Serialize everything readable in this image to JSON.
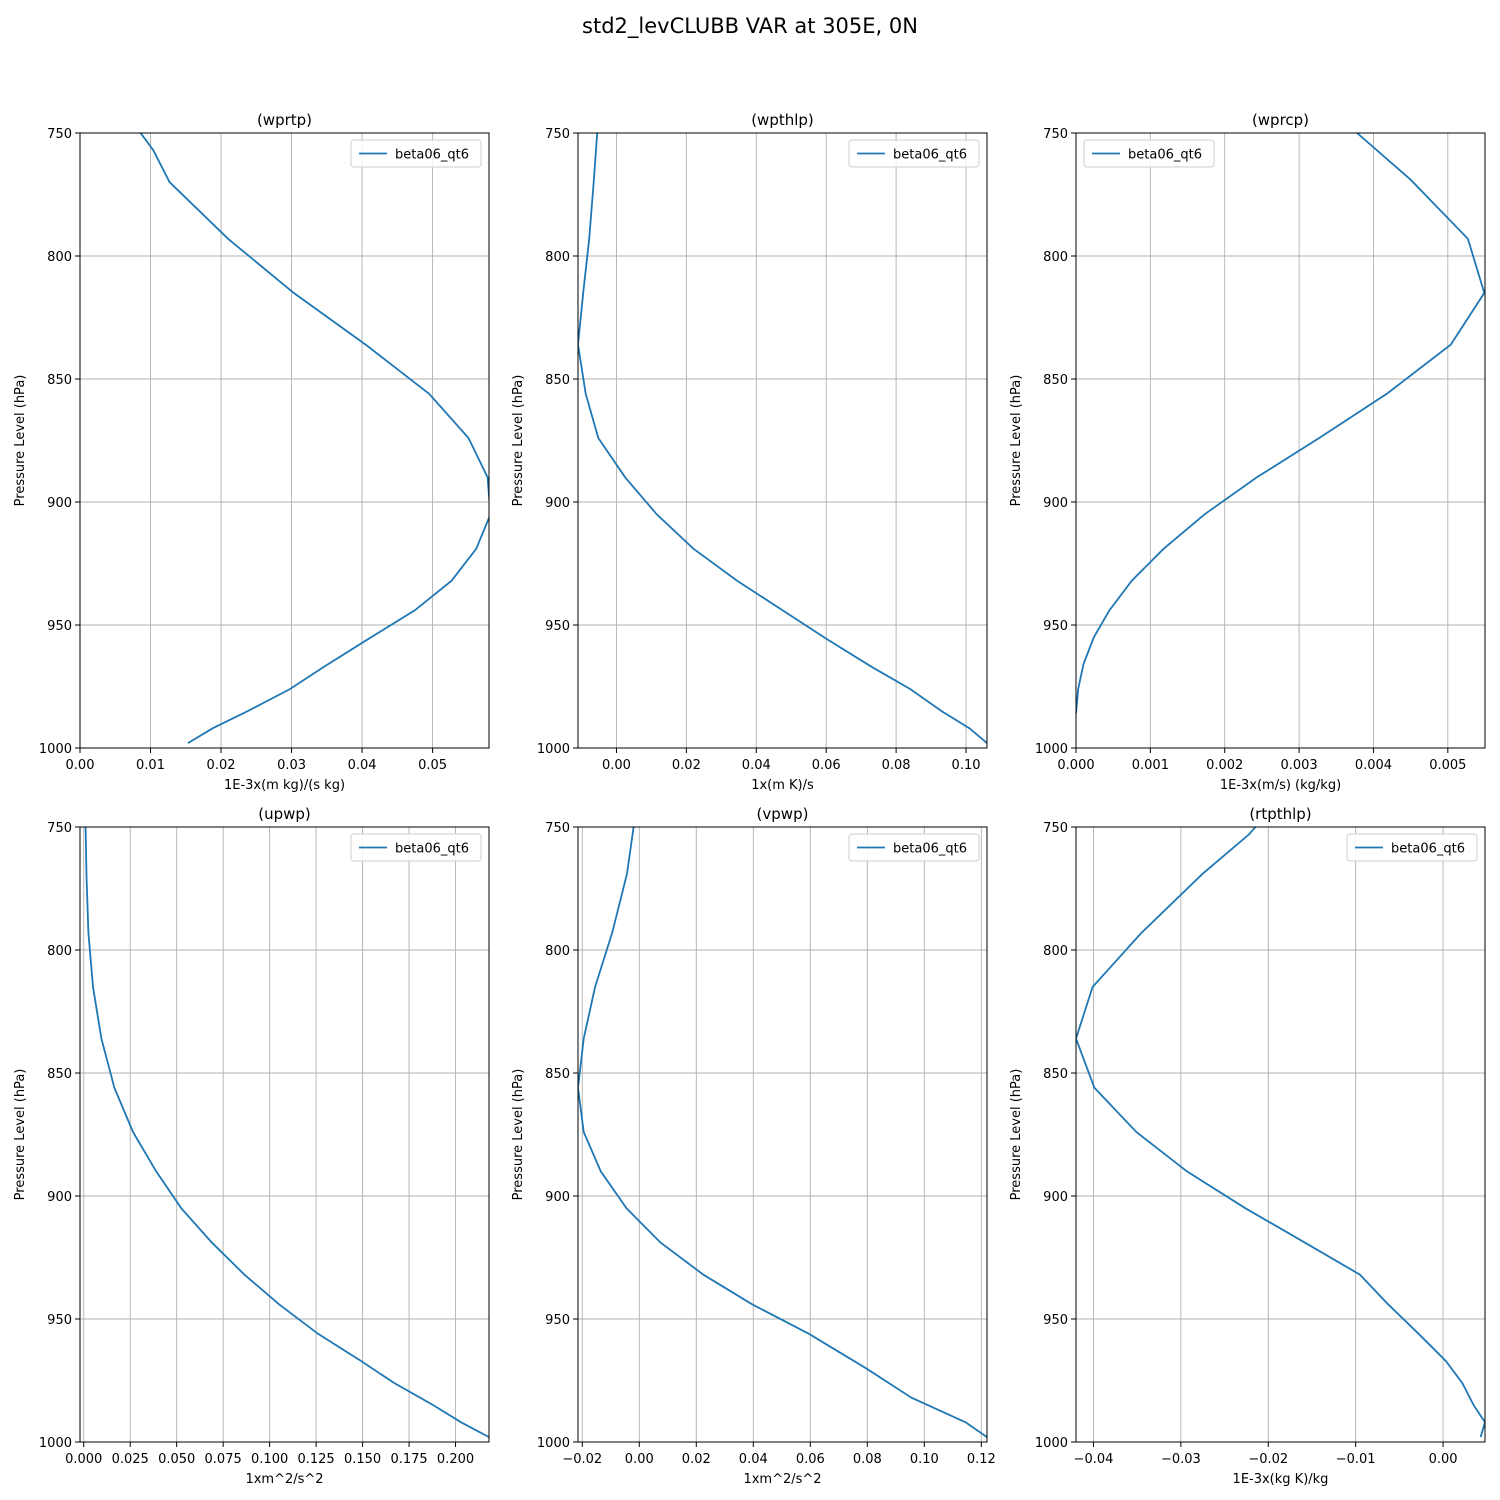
{
  "figure": {
    "title": "std2_levCLUBB VAR at 305E, 0N"
  },
  "colors": {
    "series": "#1f77b4",
    "grid": "#b0b0b0",
    "axis": "#000000",
    "legend_border": "#cccccc"
  },
  "chart_data": [
    {
      "type": "line",
      "title": "(wprtp)",
      "xlabel": "1E-3x(m kg)/(s kg)",
      "ylabel": "Pressure Level (hPa)",
      "xlim": [
        0,
        0.058
      ],
      "ylim": [
        1000,
        750
      ],
      "xticks": [
        0,
        0.01,
        0.02,
        0.03,
        0.04,
        0.05
      ],
      "xtick_labels": [
        "0.00",
        "0.01",
        "0.02",
        "0.03",
        "0.04",
        "0.05"
      ],
      "yticks": [
        750,
        800,
        850,
        900,
        950,
        1000
      ],
      "ytick_labels": [
        "750",
        "800",
        "850",
        "900",
        "950",
        "1000"
      ],
      "grid": true,
      "legend": "upper right",
      "series": [
        {
          "name": "beta06_qt6",
          "x": [
            0.0086,
            0.0104,
            0.0127,
            0.021,
            0.0303,
            0.0405,
            0.0495,
            0.0551,
            0.0578,
            0.0582,
            0.0562,
            0.0527,
            0.0475,
            0.0407,
            0.0346,
            0.0298,
            0.0238,
            0.0188,
            0.0153
          ],
          "y": [
            750,
            757,
            770,
            793,
            815,
            836,
            856,
            874,
            890,
            905,
            919,
            932,
            944,
            956,
            967,
            976,
            985,
            992,
            998
          ]
        }
      ]
    },
    {
      "type": "line",
      "title": "(wpthlp)",
      "xlabel": "1x(m K)/s",
      "ylabel": "Pressure Level (hPa)",
      "xlim": [
        -0.011,
        0.106
      ],
      "ylim": [
        1000,
        750
      ],
      "xticks": [
        0,
        0.02,
        0.04,
        0.06,
        0.08,
        0.1
      ],
      "xtick_labels": [
        "0.00",
        "0.02",
        "0.04",
        "0.06",
        "0.08",
        "0.10"
      ],
      "yticks": [
        750,
        800,
        850,
        900,
        950,
        1000
      ],
      "ytick_labels": [
        "750",
        "800",
        "850",
        "900",
        "950",
        "1000"
      ],
      "grid": true,
      "legend": "upper right",
      "series": [
        {
          "name": "beta06_qt6",
          "x": [
            -0.0055,
            -0.0065,
            -0.0078,
            -0.0095,
            -0.011,
            -0.0088,
            -0.0052,
            0.0025,
            0.0115,
            0.022,
            0.0345,
            0.0475,
            0.0605,
            0.073,
            0.084,
            0.093,
            0.101,
            0.106
          ],
          "y": [
            750,
            770,
            793,
            815,
            836,
            856,
            874,
            890,
            905,
            919,
            932,
            944,
            956,
            967,
            976,
            985,
            992,
            998
          ]
        }
      ]
    },
    {
      "type": "line",
      "title": "(wprcp)",
      "xlabel": "1E-3x(m/s) (kg/kg)",
      "ylabel": "Pressure Level (hPa)",
      "xlim": [
        0,
        0.0055
      ],
      "ylim": [
        1000,
        750
      ],
      "xticks": [
        0,
        0.001,
        0.002,
        0.003,
        0.004,
        0.005
      ],
      "xtick_labels": [
        "0.000",
        "0.001",
        "0.002",
        "0.003",
        "0.004",
        "0.005"
      ],
      "yticks": [
        750,
        800,
        850,
        900,
        950,
        1000
      ],
      "ytick_labels": [
        "750",
        "800",
        "850",
        "900",
        "950",
        "1000"
      ],
      "grid": true,
      "legend": "upper left",
      "series": [
        {
          "name": "beta06_qt6",
          "x": [
            0.00378,
            0.0045,
            0.00527,
            0.00549,
            0.00504,
            0.00418,
            0.00327,
            0.00243,
            0.00173,
            0.00118,
            0.00075,
            0.00045,
            0.00024,
            0.0001,
            3e-05,
            0.0
          ],
          "y": [
            750,
            769,
            793,
            815,
            836,
            856,
            874,
            890,
            905,
            919,
            932,
            944,
            955,
            966,
            976,
            986
          ]
        }
      ]
    },
    {
      "type": "line",
      "title": "(upwp)",
      "xlabel": "1xm^2/s^2",
      "ylabel": "Pressure Level (hPa)",
      "xlim": [
        -0.002,
        0.218
      ],
      "ylim": [
        1000,
        750
      ],
      "xticks": [
        0,
        0.025,
        0.05,
        0.075,
        0.1,
        0.125,
        0.15,
        0.175,
        0.2
      ],
      "xtick_labels": [
        "0.000",
        "0.025",
        "0.050",
        "0.075",
        "0.100",
        "0.125",
        "0.150",
        "0.175",
        "0.200"
      ],
      "yticks": [
        750,
        800,
        850,
        900,
        950,
        1000
      ],
      "ytick_labels": [
        "750",
        "800",
        "850",
        "900",
        "950",
        "1000"
      ],
      "grid": true,
      "legend": "upper right",
      "series": [
        {
          "name": "beta06_qt6",
          "x": [
            0.001,
            0.0015,
            0.0025,
            0.005,
            0.0095,
            0.0165,
            0.0265,
            0.039,
            0.0525,
            0.069,
            0.0865,
            0.105,
            0.126,
            0.149,
            0.167,
            0.188,
            0.203,
            0.218
          ],
          "y": [
            750,
            770,
            793,
            815,
            836,
            856,
            874,
            890,
            905,
            919,
            932,
            944,
            956,
            967,
            976,
            985,
            992,
            998
          ]
        }
      ]
    },
    {
      "type": "line",
      "title": "(vpwp)",
      "xlabel": "1xm^2/s^2",
      "ylabel": "Pressure Level (hPa)",
      "xlim": [
        -0.0215,
        0.122
      ],
      "ylim": [
        1000,
        750
      ],
      "xticks": [
        -0.02,
        0,
        0.02,
        0.04,
        0.06,
        0.08,
        0.1,
        0.12
      ],
      "xtick_labels": [
        "−0.02",
        "0.00",
        "0.02",
        "0.04",
        "0.06",
        "0.08",
        "0.10",
        "0.12"
      ],
      "yticks": [
        750,
        800,
        850,
        900,
        950,
        1000
      ],
      "ytick_labels": [
        "750",
        "800",
        "850",
        "900",
        "950",
        "1000"
      ],
      "grid": true,
      "legend": "upper right",
      "series": [
        {
          "name": "beta06_qt6",
          "x": [
            -0.002,
            -0.0043,
            -0.0095,
            -0.0155,
            -0.0195,
            -0.0215,
            -0.0195,
            -0.0135,
            -0.0045,
            0.0075,
            0.0225,
            0.0395,
            0.0595,
            0.0795,
            0.0955,
            0.1145,
            0.122
          ],
          "y": [
            750,
            769,
            793,
            815,
            836,
            856,
            874,
            890,
            905,
            919,
            932,
            944,
            956,
            970,
            982,
            992,
            998
          ]
        }
      ]
    },
    {
      "type": "line",
      "title": "(rtpthlp)",
      "xlabel": "1E-3x(kg K)/kg",
      "ylabel": "Pressure Level (hPa)",
      "xlim": [
        -0.042,
        0.0048
      ],
      "ylim": [
        1000,
        750
      ],
      "xticks": [
        -0.04,
        -0.03,
        -0.02,
        -0.01,
        0
      ],
      "xtick_labels": [
        "−0.04",
        "−0.03",
        "−0.02",
        "−0.01",
        "0.00"
      ],
      "yticks": [
        750,
        800,
        850,
        900,
        950,
        1000
      ],
      "ytick_labels": [
        "750",
        "800",
        "850",
        "900",
        "950",
        "1000"
      ],
      "grid": true,
      "legend": "upper right",
      "series": [
        {
          "name": "beta06_qt6",
          "x": [
            -0.0195,
            -0.0222,
            -0.0275,
            -0.0345,
            -0.0401,
            -0.042,
            -0.0399,
            -0.0351,
            -0.0293,
            -0.0226,
            -0.0158,
            -0.0095,
            -0.0063,
            -0.0028,
            0.0003,
            0.0022,
            0.0035,
            0.0048,
            0.0043
          ],
          "y": [
            742,
            753,
            769,
            793,
            815,
            836,
            856,
            874,
            890,
            905,
            919,
            932,
            944,
            956,
            967,
            976,
            985,
            992,
            998
          ]
        }
      ]
    }
  ]
}
